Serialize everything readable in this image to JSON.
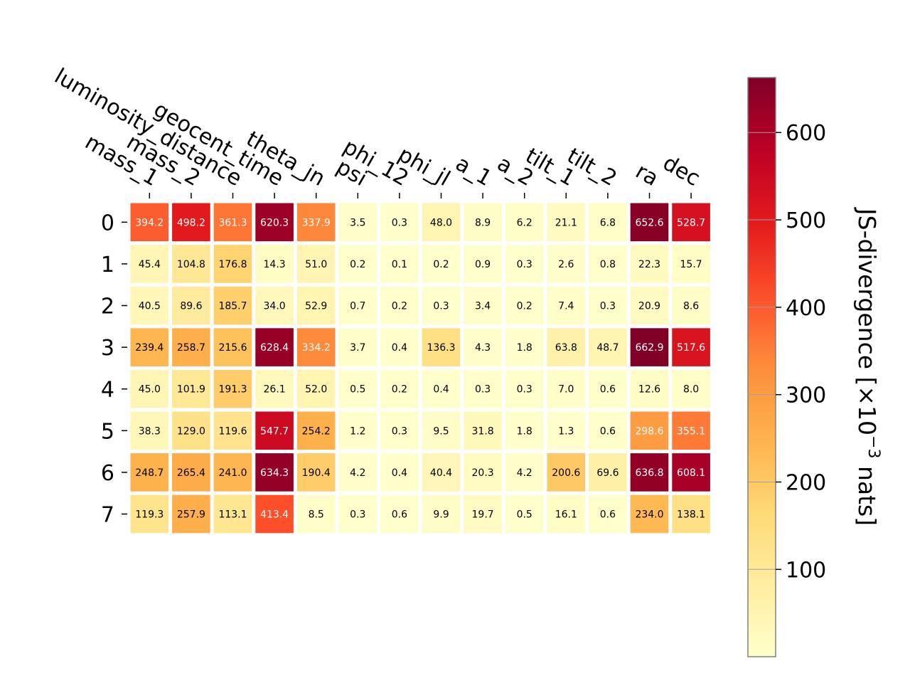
{
  "chart_data": {
    "type": "heatmap",
    "x_categories": [
      "mass_1",
      "mass_2",
      "luminosity_distance",
      "geocent_time",
      "theta_jn",
      "psi",
      "phi_12",
      "phi_jl",
      "a_1",
      "a_2",
      "tilt_1",
      "tilt_2",
      "ra",
      "dec"
    ],
    "y_categories": [
      "0",
      "1",
      "2",
      "3",
      "4",
      "5",
      "6",
      "7"
    ],
    "values": [
      [
        394.2,
        498.2,
        361.3,
        620.3,
        337.9,
        3.5,
        0.3,
        48.0,
        8.9,
        6.2,
        21.1,
        6.8,
        652.6,
        528.7
      ],
      [
        45.4,
        104.8,
        176.8,
        14.3,
        51.0,
        0.2,
        0.1,
        0.2,
        0.9,
        0.3,
        2.6,
        0.8,
        22.3,
        15.7
      ],
      [
        40.5,
        89.6,
        185.7,
        34.0,
        52.9,
        0.7,
        0.2,
        0.3,
        3.4,
        0.2,
        7.4,
        0.3,
        20.9,
        8.6
      ],
      [
        239.4,
        258.7,
        215.6,
        628.4,
        334.2,
        3.7,
        0.4,
        136.3,
        4.3,
        1.8,
        63.8,
        48.7,
        662.9,
        517.6
      ],
      [
        45.0,
        101.9,
        191.3,
        26.1,
        52.0,
        0.5,
        0.2,
        0.4,
        0.3,
        0.3,
        7.0,
        0.6,
        12.6,
        8.0
      ],
      [
        38.3,
        129.0,
        119.6,
        547.7,
        254.2,
        1.2,
        0.3,
        9.5,
        31.8,
        1.8,
        1.3,
        0.6,
        298.6,
        355.1
      ],
      [
        248.7,
        265.4,
        241.0,
        634.3,
        190.4,
        4.2,
        0.4,
        40.4,
        20.3,
        4.2,
        200.6,
        69.6,
        636.8,
        608.1
      ],
      [
        119.3,
        257.9,
        113.1,
        413.4,
        8.5,
        0.3,
        0.6,
        9.9,
        19.7,
        0.5,
        16.1,
        0.6,
        234.0,
        138.1
      ]
    ],
    "colorbar": {
      "label_prefix": "JS-divergence [×10",
      "label_exponent": "−3",
      "label_suffix": " nats]",
      "range": [
        0.1,
        662.9
      ],
      "ticks": [
        100,
        200,
        300,
        400,
        500,
        600
      ],
      "colormap": "YlOrRd"
    }
  }
}
